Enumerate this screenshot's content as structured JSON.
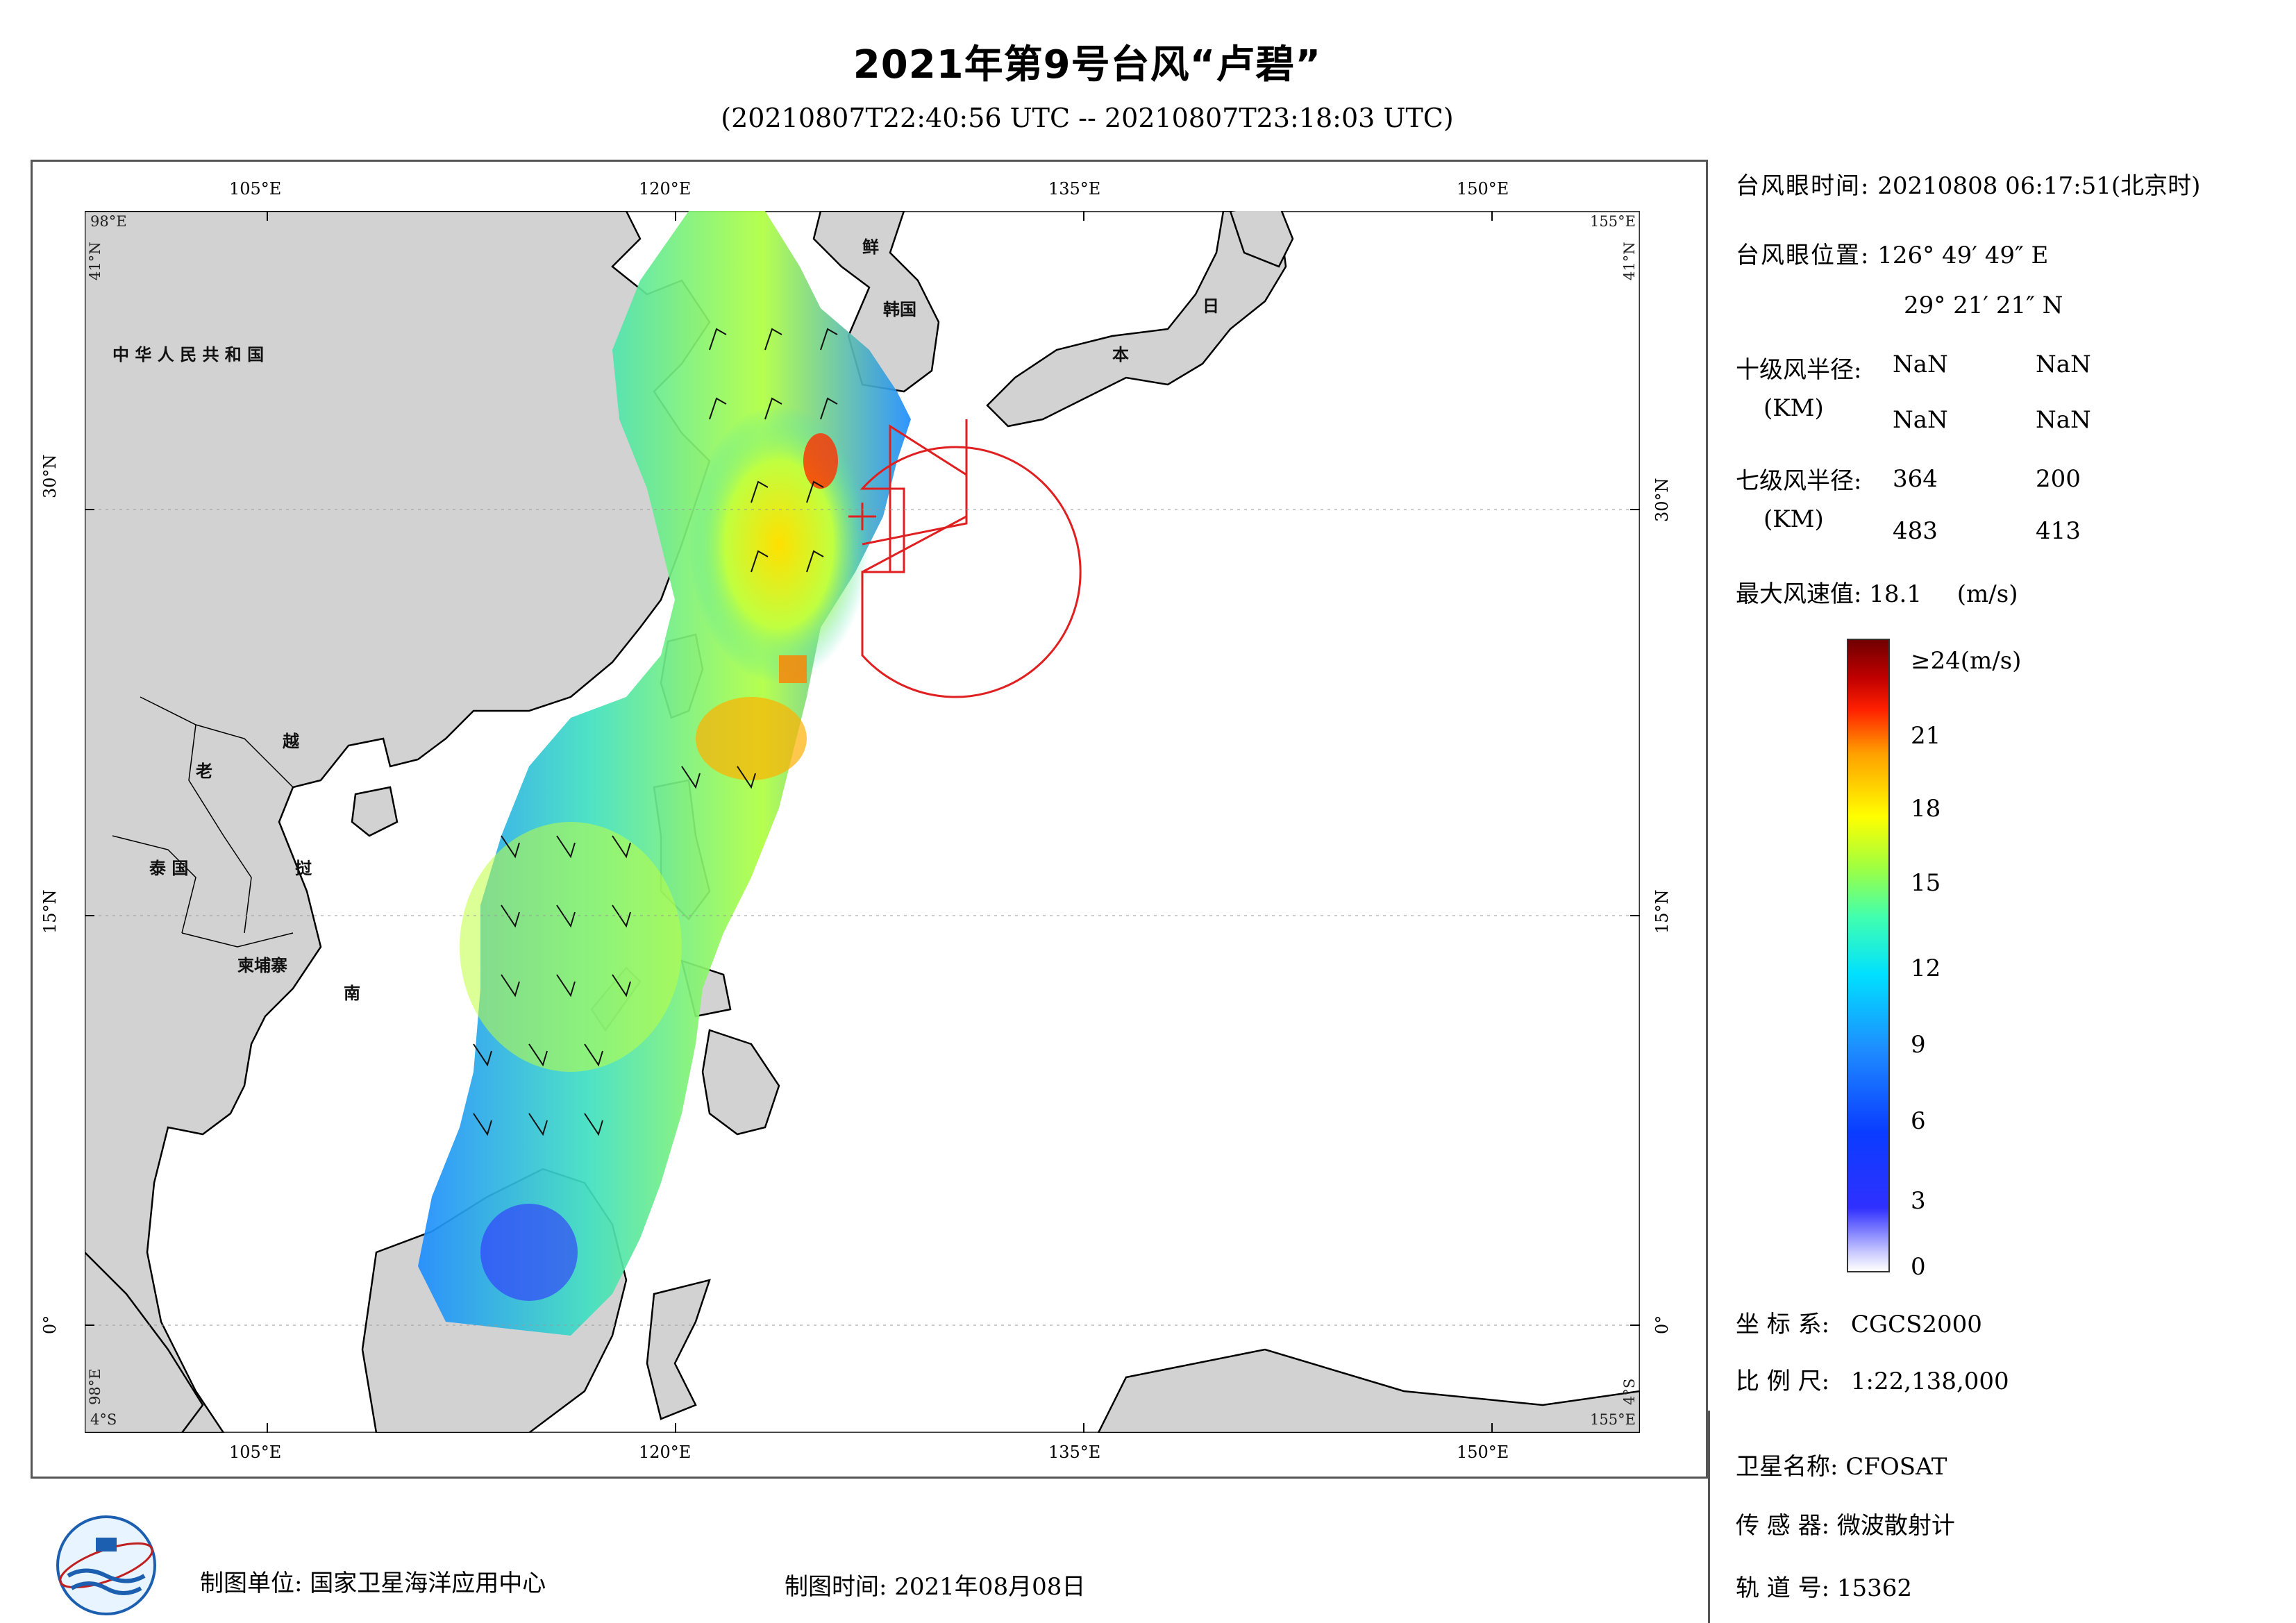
{
  "title": "2021年第9号台风“卢碧”",
  "subtitle": "(20210807T22:40:56 UTC -- 20210807T23:18:03 UTC)",
  "axes": {
    "lon_ticks": [
      "105°E",
      "120°E",
      "135°E",
      "150°E"
    ],
    "lat_ticks": [
      "30°N",
      "15°N",
      "0°"
    ],
    "corners": {
      "tl_lon": "98°E",
      "tl_lat": "41°N",
      "tr_lon": "155°E",
      "tr_lat": "41°N",
      "bl_lon": "98°E",
      "bl_lat": "4°S",
      "br_lon": "155°E",
      "br_lat": "4°S"
    }
  },
  "countries": [
    {
      "name": "中 华 人 民 共 和 国"
    },
    {
      "name": "鲜"
    },
    {
      "name": "韩国"
    },
    {
      "name": "日"
    },
    {
      "name": "本"
    },
    {
      "name": "老"
    },
    {
      "name": "越"
    },
    {
      "name": "泰 国"
    },
    {
      "name": "挝"
    },
    {
      "name": "柬埔寨"
    },
    {
      "name": "南"
    }
  ],
  "info": {
    "eye_time_label": "台风眼时间:",
    "eye_time_value": "20210808 06:17:51(北京时)",
    "eye_pos_label": "台风眼位置:",
    "eye_pos_lon": "126° 49′ 49″ E",
    "eye_pos_lat": "29° 21′ 21″ N",
    "r10_label": "十级风半径:",
    "r10_unit": "(KM)",
    "r10_values": [
      "NaN",
      "NaN",
      "NaN",
      "NaN"
    ],
    "r7_label": "七级风半径:",
    "r7_unit": "(KM)",
    "r7_values": [
      "364",
      "200",
      "483",
      "413"
    ],
    "max_wind_label": "最大风速值:",
    "max_wind_value": "18.1",
    "max_wind_unit": "(m/s)"
  },
  "colorbar": {
    "labels": [
      "≥24(m/s)",
      "21",
      "18",
      "15",
      "12",
      "9",
      "6",
      "3",
      "0"
    ],
    "colors": [
      "#700000",
      "#c00000",
      "#ff2000",
      "#ffa000",
      "#ffff00",
      "#a0ff40",
      "#00e0ff",
      "#1e8cff",
      "#3030ff",
      "#ffffff"
    ]
  },
  "meta": {
    "crs_label": "坐 标 系:",
    "crs_value": "CGCS2000",
    "scale_label": "比 例 尺:",
    "scale_value": "1:22,138,000",
    "sat_label": "卫星名称:",
    "sat_value": "CFOSAT",
    "sensor_label": "传 感 器:",
    "sensor_value": "微波散射计",
    "orbit_label": "轨 道 号:",
    "orbit_value": "15362"
  },
  "footer": {
    "unit_label": "制图单位:",
    "unit_value": "国家卫星海洋应用中心",
    "date_label": "制图时间:",
    "date_value": "2021年08月08日"
  },
  "legend_colors": {
    "land": "#d2d2d2",
    "ocean": "#ffffff",
    "coast": "#000000",
    "wind_radius": "#e02020"
  }
}
